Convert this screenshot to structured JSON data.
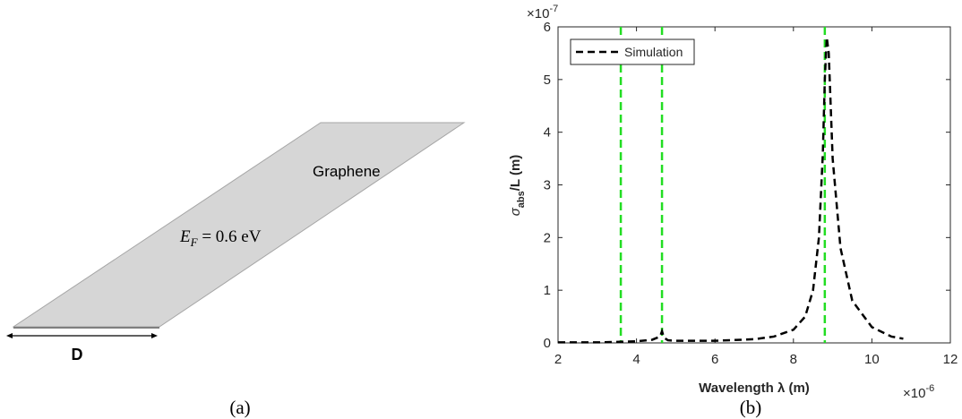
{
  "diagram": {
    "material": "Graphene",
    "fermi_symbol": "E",
    "fermi_subscript": "F",
    "fermi_rest": " = 0.6 eV",
    "width_label": "D"
  },
  "captions": [
    "(a)",
    "(b)"
  ],
  "chart_data": {
    "type": "line",
    "y_label": {
      "symbol": "σ",
      "subscript": "abs",
      "rest": "/L (m)"
    },
    "x_label": "Wavelength λ (m)",
    "x_multiplier": {
      "base": "×10",
      "exponent": "-6"
    },
    "y_multiplier": {
      "base": "×10",
      "exponent": "-7"
    },
    "xlim": [
      2,
      12
    ],
    "ylim": [
      0,
      6
    ],
    "xticks": [
      2,
      4,
      6,
      8,
      10,
      12
    ],
    "yticks": [
      0,
      1,
      2,
      3,
      4,
      5,
      6
    ],
    "legend": "upper left",
    "x": [
      2,
      3,
      3.5,
      4,
      4.4,
      4.6,
      4.65,
      4.7,
      4.8,
      5,
      6,
      7,
      7.5,
      8,
      8.3,
      8.5,
      8.65,
      8.75,
      8.8,
      8.85,
      8.9,
      9,
      9.2,
      9.5,
      10,
      10.5,
      10.8
    ],
    "series": [
      {
        "name": "Simulation",
        "color": "#000000",
        "dashed": true,
        "values": [
          0.01,
          0.01,
          0.02,
          0.03,
          0.06,
          0.12,
          0.22,
          0.1,
          0.05,
          0.04,
          0.04,
          0.07,
          0.12,
          0.25,
          0.5,
          1.0,
          2.0,
          3.6,
          5.0,
          5.8,
          5.5,
          3.5,
          1.8,
          0.8,
          0.3,
          0.12,
          0.08
        ]
      }
    ],
    "vlines": {
      "color": "#22dd22",
      "x": [
        3.6,
        4.65,
        8.8
      ]
    }
  }
}
